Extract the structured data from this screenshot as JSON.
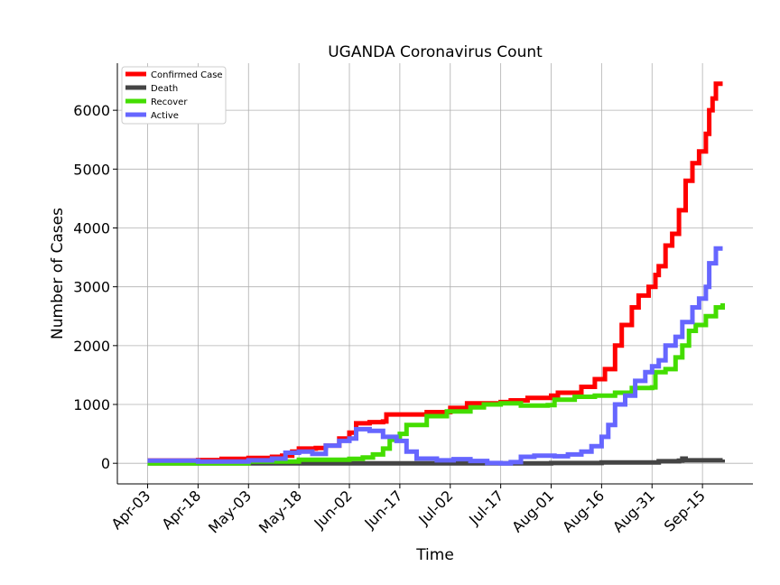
{
  "chart_data": {
    "type": "line",
    "title": "UGANDA Coronavirus Count",
    "xlabel": "Time",
    "ylabel": "Number of Cases",
    "x_start": "2020-04-03",
    "x_end": "2020-09-21",
    "xlim": [
      "2020-03-25",
      "2020-09-30"
    ],
    "ylim": [
      -350,
      6800
    ],
    "x_ticks": [
      "Apr-03",
      "Apr-18",
      "May-03",
      "May-18",
      "Jun-02",
      "Jun-17",
      "Jul-02",
      "Jul-17",
      "Aug-01",
      "Aug-16",
      "Aug-31",
      "Sep-15"
    ],
    "y_ticks": [
      0,
      1000,
      2000,
      3000,
      4000,
      5000,
      6000
    ],
    "grid": true,
    "legend_position": "top-left",
    "series": [
      {
        "name": "Confirmed Case",
        "color": "#ff0000",
        "points": [
          [
            "2020-04-03",
            48
          ],
          [
            "2020-04-18",
            55
          ],
          [
            "2020-04-25",
            75
          ],
          [
            "2020-05-03",
            90
          ],
          [
            "2020-05-10",
            110
          ],
          [
            "2020-05-13",
            130
          ],
          [
            "2020-05-16",
            200
          ],
          [
            "2020-05-18",
            250
          ],
          [
            "2020-05-23",
            260
          ],
          [
            "2020-05-26",
            300
          ],
          [
            "2020-05-30",
            420
          ],
          [
            "2020-06-02",
            520
          ],
          [
            "2020-06-04",
            680
          ],
          [
            "2020-06-08",
            700
          ],
          [
            "2020-06-12",
            710
          ],
          [
            "2020-06-13",
            830
          ],
          [
            "2020-06-22",
            830
          ],
          [
            "2020-06-25",
            870
          ],
          [
            "2020-07-02",
            940
          ],
          [
            "2020-07-07",
            1020
          ],
          [
            "2020-07-17",
            1040
          ],
          [
            "2020-07-20",
            1070
          ],
          [
            "2020-07-25",
            1110
          ],
          [
            "2020-08-01",
            1150
          ],
          [
            "2020-08-03",
            1200
          ],
          [
            "2020-08-10",
            1300
          ],
          [
            "2020-08-14",
            1430
          ],
          [
            "2020-08-17",
            1600
          ],
          [
            "2020-08-20",
            2000
          ],
          [
            "2020-08-22",
            2350
          ],
          [
            "2020-08-25",
            2650
          ],
          [
            "2020-08-27",
            2850
          ],
          [
            "2020-08-30",
            3000
          ],
          [
            "2020-09-01",
            3200
          ],
          [
            "2020-09-02",
            3350
          ],
          [
            "2020-09-04",
            3700
          ],
          [
            "2020-09-06",
            3900
          ],
          [
            "2020-09-08",
            4300
          ],
          [
            "2020-09-10",
            4800
          ],
          [
            "2020-09-12",
            5100
          ],
          [
            "2020-09-14",
            5300
          ],
          [
            "2020-09-16",
            5600
          ],
          [
            "2020-09-17",
            6000
          ],
          [
            "2020-09-18",
            6200
          ],
          [
            "2020-09-19",
            6450
          ],
          [
            "2020-09-21",
            6450
          ]
        ]
      },
      {
        "name": "Death",
        "color": "#444444",
        "points": [
          [
            "2020-04-03",
            0
          ],
          [
            "2020-07-17",
            0
          ],
          [
            "2020-08-01",
            5
          ],
          [
            "2020-08-16",
            15
          ],
          [
            "2020-09-02",
            35
          ],
          [
            "2020-09-08",
            45
          ],
          [
            "2020-09-09",
            80
          ],
          [
            "2020-09-10",
            50
          ],
          [
            "2020-09-21",
            65
          ]
        ]
      },
      {
        "name": "Recover",
        "color": "#44dd00",
        "points": [
          [
            "2020-04-03",
            0
          ],
          [
            "2020-05-03",
            30
          ],
          [
            "2020-05-18",
            60
          ],
          [
            "2020-06-02",
            75
          ],
          [
            "2020-06-06",
            100
          ],
          [
            "2020-06-09",
            150
          ],
          [
            "2020-06-12",
            250
          ],
          [
            "2020-06-14",
            400
          ],
          [
            "2020-06-17",
            500
          ],
          [
            "2020-06-19",
            650
          ],
          [
            "2020-06-25",
            800
          ],
          [
            "2020-07-01",
            880
          ],
          [
            "2020-07-08",
            950
          ],
          [
            "2020-07-12",
            1000
          ],
          [
            "2020-07-17",
            1020
          ],
          [
            "2020-07-23",
            980
          ],
          [
            "2020-07-31",
            990
          ],
          [
            "2020-08-02",
            1080
          ],
          [
            "2020-08-08",
            1130
          ],
          [
            "2020-08-14",
            1150
          ],
          [
            "2020-08-20",
            1200
          ],
          [
            "2020-08-25",
            1280
          ],
          [
            "2020-08-31",
            1290
          ],
          [
            "2020-09-01",
            1550
          ],
          [
            "2020-09-04",
            1600
          ],
          [
            "2020-09-07",
            1800
          ],
          [
            "2020-09-09",
            2000
          ],
          [
            "2020-09-11",
            2250
          ],
          [
            "2020-09-13",
            2350
          ],
          [
            "2020-09-16",
            2500
          ],
          [
            "2020-09-19",
            2650
          ],
          [
            "2020-09-21",
            2720
          ]
        ]
      },
      {
        "name": "Active",
        "color": "#6666ff",
        "points": [
          [
            "2020-04-03",
            45
          ],
          [
            "2020-04-18",
            30
          ],
          [
            "2020-05-03",
            50
          ],
          [
            "2020-05-10",
            80
          ],
          [
            "2020-05-14",
            180
          ],
          [
            "2020-05-18",
            200
          ],
          [
            "2020-05-22",
            160
          ],
          [
            "2020-05-26",
            300
          ],
          [
            "2020-05-30",
            380
          ],
          [
            "2020-06-02",
            420
          ],
          [
            "2020-06-04",
            580
          ],
          [
            "2020-06-08",
            550
          ],
          [
            "2020-06-12",
            450
          ],
          [
            "2020-06-16",
            380
          ],
          [
            "2020-06-19",
            200
          ],
          [
            "2020-06-22",
            80
          ],
          [
            "2020-06-28",
            50
          ],
          [
            "2020-07-03",
            70
          ],
          [
            "2020-07-08",
            40
          ],
          [
            "2020-07-13",
            5
          ],
          [
            "2020-07-17",
            0
          ],
          [
            "2020-07-20",
            20
          ],
          [
            "2020-07-23",
            110
          ],
          [
            "2020-07-27",
            130
          ],
          [
            "2020-08-02",
            120
          ],
          [
            "2020-08-06",
            150
          ],
          [
            "2020-08-10",
            200
          ],
          [
            "2020-08-13",
            290
          ],
          [
            "2020-08-16",
            450
          ],
          [
            "2020-08-18",
            650
          ],
          [
            "2020-08-20",
            1000
          ],
          [
            "2020-08-23",
            1150
          ],
          [
            "2020-08-26",
            1400
          ],
          [
            "2020-08-29",
            1550
          ],
          [
            "2020-08-31",
            1650
          ],
          [
            "2020-09-02",
            1750
          ],
          [
            "2020-09-04",
            2000
          ],
          [
            "2020-09-07",
            2150
          ],
          [
            "2020-09-09",
            2400
          ],
          [
            "2020-09-12",
            2650
          ],
          [
            "2020-09-14",
            2800
          ],
          [
            "2020-09-16",
            3000
          ],
          [
            "2020-09-17",
            3400
          ],
          [
            "2020-09-19",
            3650
          ],
          [
            "2020-09-21",
            3650
          ]
        ]
      }
    ]
  }
}
